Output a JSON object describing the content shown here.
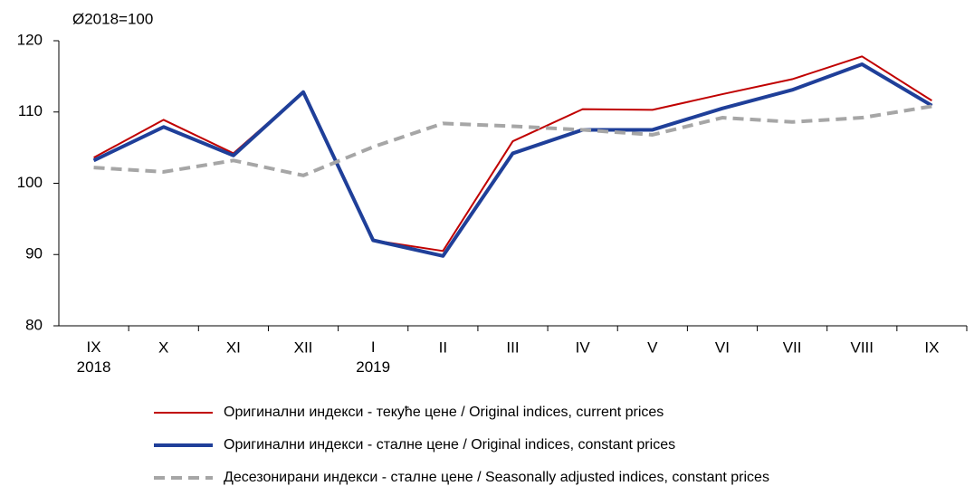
{
  "chart_data": {
    "type": "line",
    "axis_label": "Ø2018=100",
    "categories": [
      "IX\n2018",
      "X",
      "XI",
      "XII",
      "I\n2019",
      "II",
      "III",
      "IV",
      "V",
      "VI",
      "VII",
      "VIII",
      "IX"
    ],
    "series": [
      {
        "name": "Оригинални индекси - текуће цене / Original indices, current prices",
        "color": "#c00000",
        "style": "solid",
        "width": 2,
        "values": [
          103.6,
          108.9,
          104.2,
          112.8,
          92.0,
          90.5,
          105.9,
          110.4,
          110.3,
          112.5,
          114.6,
          117.8,
          111.6
        ]
      },
      {
        "name": "Оригинални индекси - сталне цене / Original indices, constant prices",
        "color": "#1f3f99",
        "style": "solid",
        "width": 4,
        "values": [
          103.2,
          107.9,
          103.9,
          112.8,
          92.0,
          89.8,
          104.2,
          107.5,
          107.5,
          110.5,
          113.1,
          116.7,
          110.9
        ]
      },
      {
        "name": "Десезонирани индекси - сталне цене / Seasonally adjusted indices, constant prices",
        "color": "#a6a6a6",
        "style": "dashed",
        "width": 4,
        "values": [
          102.2,
          101.6,
          103.2,
          101.1,
          105.1,
          108.4,
          108.0,
          107.5,
          106.8,
          109.2,
          108.6,
          109.2,
          110.8
        ]
      }
    ],
    "ylim": [
      80,
      120
    ],
    "yticks": [
      80,
      90,
      100,
      110,
      120
    ],
    "grid": false,
    "legend": "bottom"
  }
}
